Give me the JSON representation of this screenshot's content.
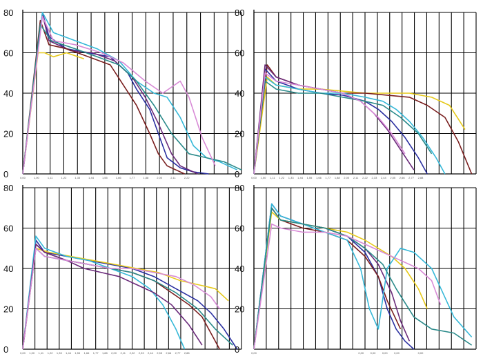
{
  "figure": "four-panel force curves",
  "chart_data": [
    {
      "type": "line",
      "ylim": [
        0,
        80
      ],
      "yticks": [
        "0",
        "20",
        "40",
        "60",
        "80"
      ],
      "xtick_labels": [
        "0,00",
        "1,00",
        "1,11",
        "1,22",
        "1,33",
        "1,44",
        "1,55",
        "1,66",
        "1,77",
        "1,88",
        "2,00",
        "2,11",
        "2,22"
      ],
      "x_range": [
        0,
        1
      ],
      "series": [
        {
          "color": "#2a2fa0",
          "x": [
            0,
            0.09,
            0.12,
            0.2,
            0.3,
            0.4,
            0.48,
            0.52,
            0.58,
            0.62,
            0.66,
            0.72,
            0.78,
            0.85
          ],
          "y": [
            0,
            80,
            68,
            62,
            60,
            58,
            50,
            42,
            32,
            20,
            8,
            3,
            1,
            0
          ]
        },
        {
          "color": "#6a2a7a",
          "x": [
            0,
            0.09,
            0.12,
            0.22,
            0.32,
            0.42,
            0.5,
            0.56,
            0.62,
            0.68,
            0.72,
            0.8
          ],
          "y": [
            0,
            79,
            66,
            61,
            60,
            56,
            48,
            38,
            25,
            10,
            4,
            0
          ]
        },
        {
          "color": "#7a1f1f",
          "x": [
            0,
            0.08,
            0.12,
            0.2,
            0.3,
            0.4,
            0.46,
            0.52,
            0.58,
            0.62,
            0.66,
            0.74
          ],
          "y": [
            0,
            76,
            64,
            62,
            58,
            54,
            44,
            34,
            20,
            10,
            4,
            0
          ]
        },
        {
          "color": "#e6c91a",
          "x": [
            0,
            0.07,
            0.1,
            0.14,
            0.2,
            0.28
          ],
          "y": [
            0,
            60,
            60,
            58,
            60,
            57
          ]
        },
        {
          "color": "#36b8d8",
          "x": [
            0,
            0.09,
            0.14,
            0.24,
            0.34,
            0.44,
            0.52,
            0.6,
            0.66,
            0.72,
            0.78,
            0.84,
            0.9,
            0.98
          ],
          "y": [
            0,
            80,
            70,
            66,
            62,
            56,
            46,
            40,
            38,
            28,
            14,
            8,
            6,
            2
          ]
        },
        {
          "color": "#2a8a8a",
          "x": [
            0,
            0.08,
            0.13,
            0.24,
            0.34,
            0.44,
            0.52,
            0.6,
            0.68,
            0.76,
            0.84,
            0.92,
            1.0
          ],
          "y": [
            0,
            74,
            66,
            62,
            58,
            54,
            46,
            34,
            20,
            10,
            8,
            6,
            2
          ]
        },
        {
          "color": "#d88ad6",
          "x": [
            0,
            0.09,
            0.14,
            0.24,
            0.36,
            0.46,
            0.56,
            0.64,
            0.72,
            0.76,
            0.82,
            0.88
          ],
          "y": [
            0,
            78,
            66,
            64,
            60,
            55,
            46,
            40,
            46,
            38,
            18,
            4
          ]
        }
      ]
    },
    {
      "type": "line",
      "ylim": [
        0,
        80
      ],
      "yticks": [
        "0",
        "20",
        "40",
        "60",
        "80"
      ],
      "xtick_labels": [
        "0,00",
        "1,00",
        "1,11",
        "1,22",
        "1,33",
        "1,44",
        "1,55",
        "1,66",
        "1,77",
        "1,88",
        "2,00",
        "2,11",
        "2,22",
        "2,33",
        "2,44",
        "2,55",
        "2,66",
        "2,77",
        "2,88"
      ],
      "x_range": [
        0,
        1
      ],
      "series": [
        {
          "color": "#e6c91a",
          "x": [
            0,
            0.06,
            0.1,
            0.2,
            0.3,
            0.4,
            0.5,
            0.6,
            0.7,
            0.8,
            0.88,
            0.95
          ],
          "y": [
            0,
            48,
            44,
            42,
            42,
            41,
            40,
            40,
            40,
            38,
            34,
            22
          ]
        },
        {
          "color": "#7a1f1f",
          "x": [
            0,
            0.06,
            0.1,
            0.2,
            0.3,
            0.4,
            0.5,
            0.6,
            0.7,
            0.78,
            0.86,
            0.92,
            0.98
          ],
          "y": [
            0,
            54,
            48,
            44,
            42,
            40,
            40,
            39,
            38,
            34,
            28,
            16,
            0
          ]
        },
        {
          "color": "#2a2fa0",
          "x": [
            0,
            0.05,
            0.1,
            0.2,
            0.3,
            0.4,
            0.5,
            0.56,
            0.62,
            0.68,
            0.74,
            0.78
          ],
          "y": [
            0,
            52,
            46,
            42,
            40,
            39,
            36,
            32,
            26,
            18,
            8,
            0
          ]
        },
        {
          "color": "#6a2a7a",
          "x": [
            0,
            0.05,
            0.1,
            0.2,
            0.3,
            0.4,
            0.48,
            0.54,
            0.6,
            0.66,
            0.72
          ],
          "y": [
            0,
            54,
            48,
            44,
            42,
            40,
            36,
            30,
            22,
            12,
            2
          ]
        },
        {
          "color": "#36b8d8",
          "x": [
            0,
            0.05,
            0.1,
            0.2,
            0.3,
            0.4,
            0.5,
            0.58,
            0.64,
            0.7,
            0.76,
            0.82,
            0.86
          ],
          "y": [
            0,
            48,
            44,
            42,
            40,
            40,
            38,
            36,
            32,
            26,
            18,
            8,
            0
          ]
        },
        {
          "color": "#2a8a8a",
          "x": [
            0,
            0.05,
            0.1,
            0.2,
            0.3,
            0.4,
            0.5,
            0.58,
            0.66,
            0.74,
            0.8
          ],
          "y": [
            0,
            46,
            42,
            40,
            40,
            38,
            36,
            34,
            28,
            20,
            10
          ]
        },
        {
          "color": "#d88ad6",
          "x": [
            0,
            0.05,
            0.1,
            0.2,
            0.3,
            0.4,
            0.48,
            0.56,
            0.62,
            0.68
          ],
          "y": [
            0,
            50,
            46,
            44,
            42,
            40,
            36,
            28,
            20,
            10
          ]
        }
      ]
    },
    {
      "type": "line",
      "ylim": [
        0,
        80
      ],
      "yticks": [
        "0",
        "20",
        "40",
        "60",
        "80"
      ],
      "xtick_labels": [
        "0,00",
        "1,00",
        "1,11",
        "1,22",
        "1,33",
        "1,44",
        "1,55",
        "1,66",
        "1,77",
        "1,88",
        "2,00",
        "2,11",
        "2,22",
        "2,33",
        "2,44",
        "2,55",
        "2,66",
        "2,77",
        "2,88"
      ],
      "x_range": [
        0,
        1
      ],
      "series": [
        {
          "color": "#2a2fa0",
          "x": [
            0,
            0.06,
            0.1,
            0.2,
            0.3,
            0.4,
            0.5,
            0.6,
            0.7,
            0.8,
            0.86,
            0.92,
            0.98
          ],
          "y": [
            0,
            54,
            48,
            46,
            44,
            42,
            40,
            36,
            30,
            24,
            18,
            10,
            0
          ]
        },
        {
          "color": "#7a1f1f",
          "x": [
            0,
            0.06,
            0.1,
            0.2,
            0.3,
            0.4,
            0.5,
            0.6,
            0.68,
            0.76,
            0.82,
            0.9
          ],
          "y": [
            0,
            52,
            48,
            44,
            42,
            40,
            38,
            34,
            28,
            22,
            16,
            0
          ]
        },
        {
          "color": "#e6c91a",
          "x": [
            0,
            0.06,
            0.12,
            0.22,
            0.32,
            0.42,
            0.52,
            0.62,
            0.72,
            0.8,
            0.88,
            0.94
          ],
          "y": [
            0,
            50,
            48,
            46,
            44,
            42,
            40,
            38,
            34,
            32,
            30,
            24
          ]
        },
        {
          "color": "#36b8d8",
          "x": [
            0,
            0.06,
            0.1,
            0.2,
            0.3,
            0.4,
            0.5,
            0.58,
            0.64,
            0.7,
            0.74
          ],
          "y": [
            0,
            56,
            50,
            46,
            44,
            40,
            36,
            30,
            22,
            10,
            0
          ]
        },
        {
          "color": "#2a8a8a",
          "x": [
            0,
            0.06,
            0.1,
            0.2,
            0.3,
            0.4,
            0.5,
            0.6,
            0.7,
            0.8,
            0.88,
            0.96
          ],
          "y": [
            0,
            50,
            46,
            44,
            42,
            40,
            38,
            34,
            28,
            20,
            10,
            2
          ]
        },
        {
          "color": "#6a2a7a",
          "x": [
            0,
            0.06,
            0.1,
            0.2,
            0.28,
            0.36,
            0.44,
            0.52,
            0.6,
            0.68,
            0.76,
            0.82
          ],
          "y": [
            0,
            52,
            48,
            44,
            40,
            38,
            36,
            32,
            28,
            22,
            12,
            2
          ]
        },
        {
          "color": "#d88ad6",
          "x": [
            0,
            0.06,
            0.1,
            0.2,
            0.3,
            0.4,
            0.5,
            0.6,
            0.7,
            0.78,
            0.86,
            0.9
          ],
          "y": [
            0,
            50,
            46,
            44,
            42,
            40,
            40,
            38,
            36,
            32,
            26,
            20
          ]
        }
      ]
    },
    {
      "type": "line",
      "ylim": [
        0,
        80
      ],
      "yticks": [
        "0",
        "20",
        "40",
        "60",
        "80"
      ],
      "xtick_labels": [
        "0,00",
        "",
        "",
        "",
        "",
        "",
        "",
        "",
        "",
        "0,00",
        "0,00",
        "0,00",
        "0,00",
        "",
        "0,00"
      ],
      "x_range": [
        0,
        1
      ],
      "series": [
        {
          "color": "#2a2fa0",
          "x": [
            0,
            0.08,
            0.12,
            0.22,
            0.32,
            0.42,
            0.5,
            0.56,
            0.6,
            0.64,
            0.68,
            0.72
          ],
          "y": [
            0,
            72,
            66,
            62,
            60,
            56,
            48,
            36,
            20,
            10,
            4,
            0
          ]
        },
        {
          "color": "#6a2a7a",
          "x": [
            0,
            0.08,
            0.12,
            0.22,
            0.32,
            0.42,
            0.5,
            0.56,
            0.62,
            0.66,
            0.7
          ],
          "y": [
            0,
            70,
            64,
            62,
            60,
            56,
            50,
            42,
            28,
            14,
            4
          ]
        },
        {
          "color": "#7a1f1f",
          "x": [
            0,
            0.08,
            0.12,
            0.22,
            0.32,
            0.42,
            0.5,
            0.56,
            0.6,
            0.66
          ],
          "y": [
            0,
            70,
            64,
            60,
            58,
            54,
            46,
            36,
            24,
            10
          ]
        },
        {
          "color": "#e6c91a",
          "x": [
            0,
            0.08,
            0.12,
            0.22,
            0.32,
            0.42,
            0.5,
            0.56,
            0.62,
            0.68,
            0.74,
            0.78
          ],
          "y": [
            0,
            68,
            64,
            62,
            60,
            58,
            54,
            50,
            46,
            40,
            30,
            20
          ]
        },
        {
          "color": "#36b8d8",
          "x": [
            0,
            0.08,
            0.12,
            0.22,
            0.32,
            0.42,
            0.48,
            0.52,
            0.56,
            0.6,
            0.66,
            0.72,
            0.8,
            0.9,
            0.98
          ],
          "y": [
            0,
            72,
            66,
            62,
            58,
            54,
            40,
            20,
            10,
            40,
            50,
            48,
            40,
            16,
            6
          ]
        },
        {
          "color": "#2a8a8a",
          "x": [
            0,
            0.08,
            0.12,
            0.22,
            0.32,
            0.42,
            0.5,
            0.58,
            0.64,
            0.72,
            0.8,
            0.9,
            0.98
          ],
          "y": [
            0,
            70,
            64,
            62,
            60,
            56,
            50,
            42,
            30,
            16,
            10,
            8,
            2
          ]
        },
        {
          "color": "#d88ad6",
          "x": [
            0,
            0.08,
            0.12,
            0.22,
            0.32,
            0.42,
            0.5,
            0.58,
            0.66,
            0.74,
            0.8,
            0.84
          ],
          "y": [
            0,
            62,
            60,
            58,
            58,
            56,
            52,
            48,
            44,
            40,
            34,
            22
          ]
        }
      ]
    }
  ]
}
